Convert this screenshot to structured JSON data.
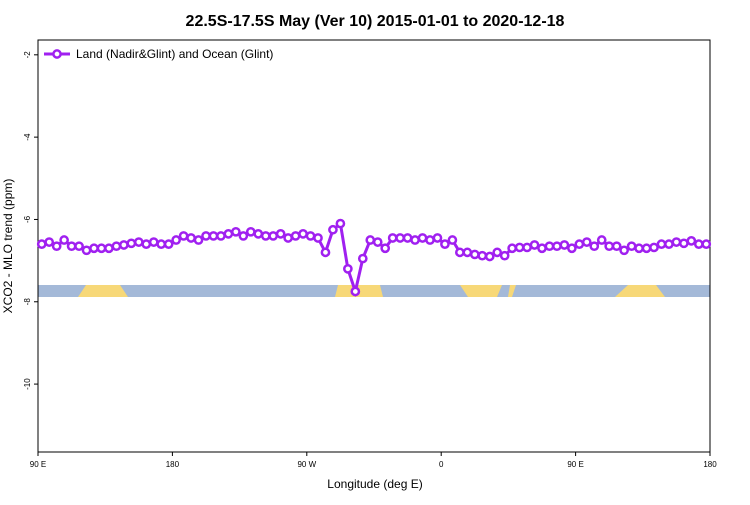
{
  "chart_data": {
    "type": "line",
    "title": "22.5S-17.5S May (Ver 10)   2015-01-01 to 2020-12-18",
    "xlabel": "Longitude (deg E)",
    "ylabel": "XCO2 - MLO trend (ppm)",
    "xlim": [
      90,
      540
    ],
    "ylim": [
      -11.65,
      -1.64
    ],
    "xticks": [
      {
        "value": 90,
        "label": "90 E"
      },
      180,
      {
        "value": 270,
        "label": "90 W"
      },
      {
        "value": 360,
        "label": "0"
      },
      {
        "value": 450,
        "label": "90 E"
      },
      {
        "value": 540,
        "label": "180"
      }
    ],
    "yticks": [
      -2,
      -4,
      -6,
      -8,
      -10
    ],
    "legend": "top-left",
    "x": [
      92.5,
      97.5,
      102.5,
      107.5,
      112.5,
      117.5,
      122.5,
      127.5,
      132.5,
      137.5,
      142.5,
      147.5,
      152.5,
      157.5,
      162.5,
      167.5,
      172.5,
      177.5,
      182.5,
      187.5,
      192.5,
      197.5,
      202.5,
      207.5,
      212.5,
      217.5,
      222.5,
      227.5,
      232.5,
      237.5,
      242.5,
      247.5,
      252.5,
      257.5,
      262.5,
      267.5,
      272.5,
      277.5,
      282.5,
      287.5,
      292.5,
      297.5,
      302.5,
      307.5,
      312.5,
      317.5,
      322.5,
      327.5,
      332.5,
      337.5,
      342.5,
      347.5,
      352.5,
      357.5,
      362.5,
      367.5,
      372.5,
      377.5,
      382.5,
      387.5,
      392.5,
      397.5,
      402.5,
      407.5,
      412.5,
      417.5,
      422.5,
      427.5,
      432.5,
      437.5,
      442.5,
      447.5,
      452.5,
      457.5,
      462.5,
      467.5,
      472.5,
      477.5,
      482.5,
      487.5,
      492.5,
      497.5,
      502.5,
      507.5,
      512.5,
      517.5,
      522.5,
      527.5,
      532.5,
      537.5
    ],
    "series": [
      {
        "name": "Land (Nadir&Glint) and Ocean (Glint)",
        "color": "#a020f0",
        "values": [
          -6.6,
          -6.55,
          -6.65,
          -6.5,
          -6.65,
          -6.65,
          -6.75,
          -6.7,
          -6.7,
          -6.7,
          -6.65,
          -6.62,
          -6.58,
          -6.55,
          -6.6,
          -6.55,
          -6.6,
          -6.6,
          -6.5,
          -6.4,
          -6.45,
          -6.5,
          -6.4,
          -6.4,
          -6.4,
          -6.35,
          -6.3,
          -6.4,
          -6.3,
          -6.35,
          -6.4,
          -6.4,
          -6.35,
          -6.45,
          -6.4,
          -6.35,
          -6.4,
          -6.45,
          -6.8,
          -6.25,
          -6.1,
          -7.2,
          -7.75,
          -6.95,
          -6.5,
          -6.55,
          -6.7,
          -6.45,
          -6.45,
          -6.45,
          -6.5,
          -6.45,
          -6.5,
          -6.45,
          -6.6,
          -6.5,
          -6.8,
          -6.8,
          -6.85,
          -6.88,
          -6.9,
          -6.8,
          -6.88,
          -6.7,
          -6.68,
          -6.68,
          -6.62,
          -6.7,
          -6.65,
          -6.65,
          -6.62,
          -6.7,
          -6.6,
          -6.55,
          -6.65,
          -6.5,
          -6.65,
          -6.65,
          -6.75,
          -6.65,
          -6.7,
          -6.7,
          -6.68,
          -6.6,
          -6.6,
          -6.55,
          -6.58,
          -6.52,
          -6.6,
          -6.6
        ]
      }
    ]
  }
}
